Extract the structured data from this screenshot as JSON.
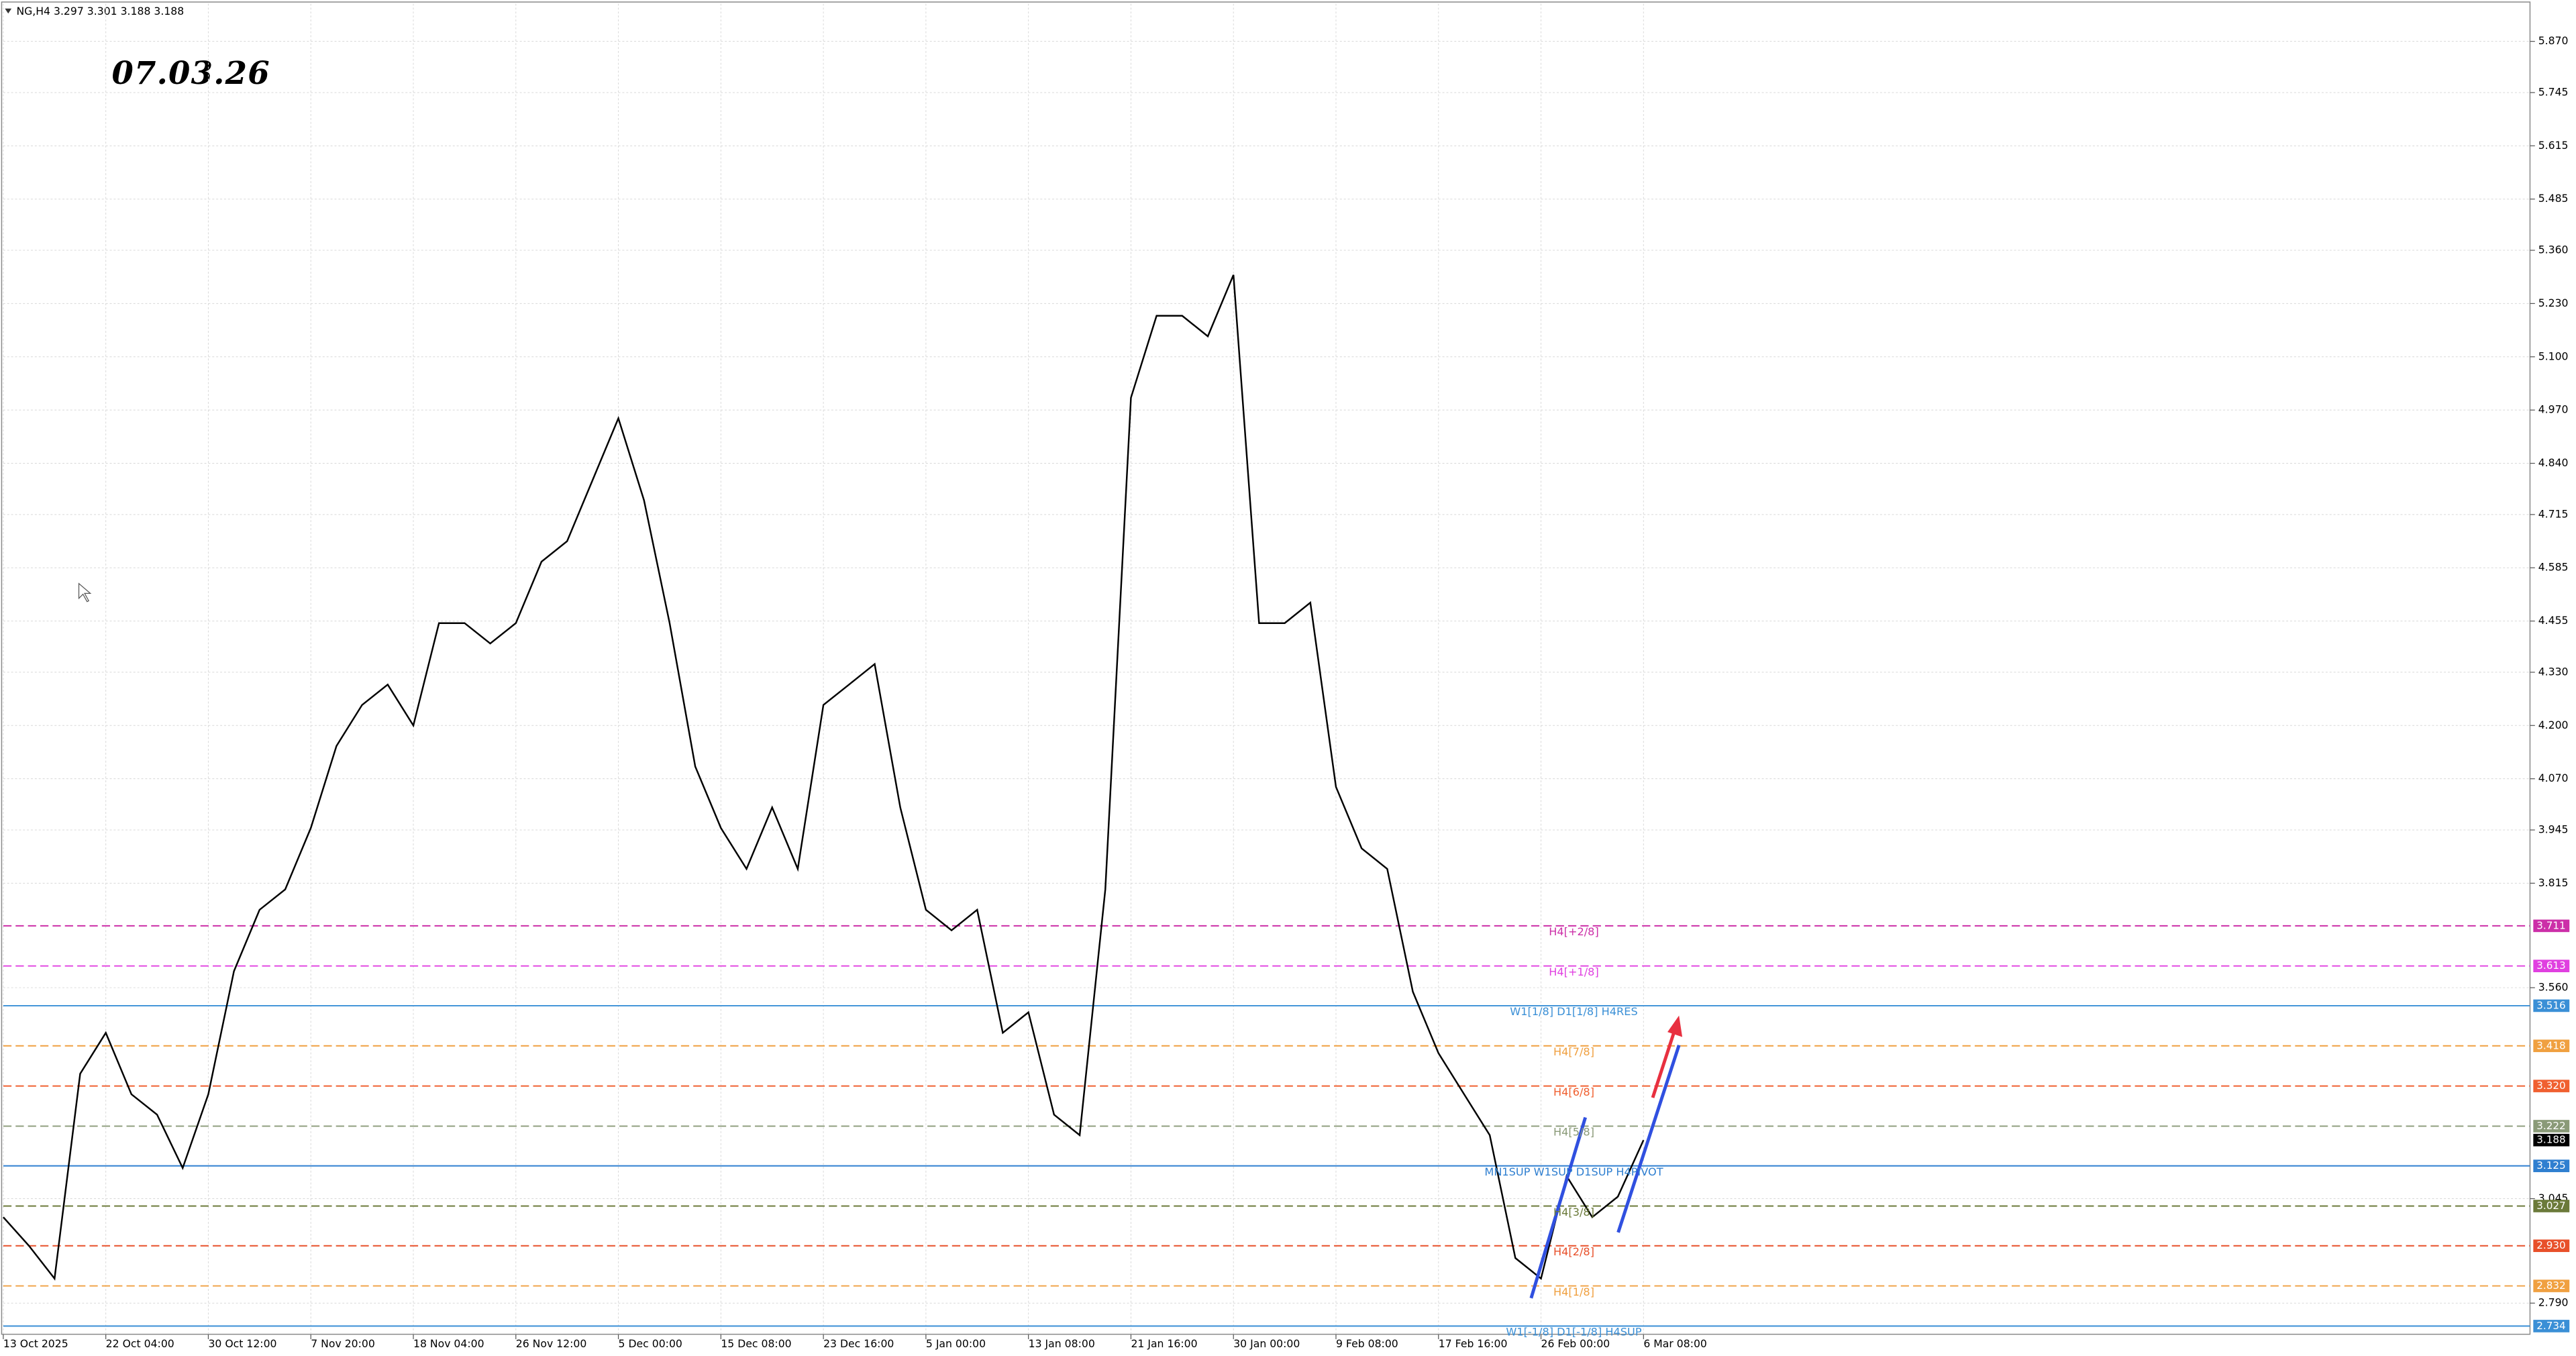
{
  "chart_data": {
    "type": "line",
    "title": "NG,H4 3.297 3.301 3.188 3.188",
    "annotation": "07.03.26",
    "categories": [
      "13 Oct 2025",
      null,
      null,
      null,
      "22 Oct 04:00",
      null,
      null,
      null,
      "30 Oct 12:00",
      null,
      null,
      null,
      "7 Nov 20:00",
      null,
      null,
      null,
      "18 Nov 04:00",
      null,
      null,
      null,
      "26 Nov 12:00",
      null,
      null,
      null,
      "5 Dec 00:00",
      null,
      null,
      null,
      "15 Dec 08:00",
      null,
      null,
      null,
      "23 Dec 16:00",
      null,
      null,
      null,
      "5 Jan 00:00",
      null,
      null,
      null,
      "13 Jan 08:00",
      null,
      null,
      null,
      "21 Jan 16:00",
      null,
      null,
      null,
      "30 Jan 00:00",
      null,
      null,
      null,
      "9 Feb 08:00",
      null,
      null,
      null,
      "17 Feb 16:00",
      null,
      null,
      null,
      "26 Feb 00:00",
      null,
      null,
      null,
      "6 Mar 08:00"
    ],
    "series": [
      {
        "name": "NG,H4",
        "color": "#000000",
        "values": [
          3.0,
          2.93,
          2.85,
          3.35,
          3.45,
          3.3,
          3.25,
          3.12,
          3.3,
          3.6,
          3.75,
          3.8,
          3.95,
          4.15,
          4.25,
          4.3,
          4.2,
          4.45,
          4.45,
          4.4,
          4.45,
          4.6,
          4.65,
          4.8,
          4.95,
          4.75,
          4.45,
          4.1,
          3.95,
          3.85,
          4.0,
          3.85,
          4.25,
          4.3,
          4.35,
          4.0,
          3.75,
          3.7,
          3.75,
          3.45,
          3.5,
          3.25,
          3.2,
          3.8,
          5.0,
          5.2,
          5.2,
          5.15,
          5.3,
          4.45,
          4.45,
          4.5,
          4.05,
          3.9,
          3.85,
          3.55,
          3.4,
          3.3,
          3.2,
          2.9,
          2.85,
          3.1,
          3.0,
          3.05,
          3.188
        ]
      }
    ],
    "ylim": [
      2.714,
      5.962
    ],
    "yticks": [
      {
        "value": 5.87,
        "label": "5.870"
      },
      5.745,
      5.615,
      5.485,
      {
        "value": 5.36,
        "label": "5.360"
      },
      {
        "value": 5.23,
        "label": "5.230"
      },
      {
        "value": 5.1,
        "label": "5.100"
      },
      {
        "value": 4.97,
        "label": "4.970"
      },
      {
        "value": 4.84,
        "label": "4.840"
      },
      4.715,
      4.585,
      4.455,
      {
        "value": 4.33,
        "label": "4.330"
      },
      {
        "value": 4.2,
        "label": "4.200"
      },
      {
        "value": 4.07,
        "label": "4.070"
      },
      3.945,
      3.815,
      {
        "value": 3.56,
        "label": "3.560"
      },
      3.045,
      {
        "value": 2.79,
        "label": "2.790"
      }
    ],
    "grid": true,
    "levels": [
      {
        "name": "H4[+2/8]",
        "value": 3.711,
        "color": "#cc2fa8",
        "dashed": true
      },
      {
        "name": "H4[+1/8]",
        "value": 3.613,
        "color": "#e040e0",
        "dashed": true
      },
      {
        "name": "W1[1/8] D1[1/8] H4RES",
        "value": 3.516,
        "color": "#3a8fd6",
        "dashed": false
      },
      {
        "name": "H4[7/8]",
        "value": 3.418,
        "color": "#f0a040",
        "dashed": true
      },
      {
        "name": "H4[6/8]",
        "value": 3.32,
        "value_label": "3.320",
        "color": "#f06030",
        "dashed": true
      },
      {
        "name": "H4[5/8]",
        "value": 3.222,
        "color": "#8a9a78",
        "dashed": true
      },
      {
        "name": "MN1SUP W1SUP D1SUP H4PIVOT",
        "value": 3.125,
        "color": "#2f7fd0",
        "dashed": false
      },
      {
        "name": "H4[3/8]",
        "value": 3.027,
        "color": "#6b7a3a",
        "dashed": true
      },
      {
        "name": "H4[2/8]",
        "value": 2.93,
        "value_label": "2.930",
        "color": "#e8502a",
        "dashed": true
      },
      {
        "name": "H4[1/8]",
        "value": 2.832,
        "color": "#f0a040",
        "dashed": true
      },
      {
        "name": "W1[-1/8] D1[-1/8] H4SUP",
        "value": 2.734,
        "color": "#3a8fd6",
        "dashed": false
      }
    ],
    "last_price": 3.188
  }
}
